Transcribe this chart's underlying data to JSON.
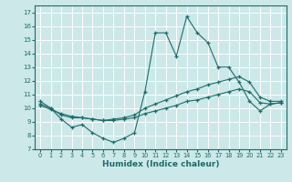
{
  "xlabel": "Humidex (Indice chaleur)",
  "xlim": [
    -0.5,
    23.5
  ],
  "ylim": [
    7,
    17.5
  ],
  "yticks": [
    7,
    8,
    9,
    10,
    11,
    12,
    13,
    14,
    15,
    16,
    17
  ],
  "xticks": [
    0,
    1,
    2,
    3,
    4,
    5,
    6,
    7,
    8,
    9,
    10,
    11,
    12,
    13,
    14,
    15,
    16,
    17,
    18,
    19,
    20,
    21,
    22,
    23
  ],
  "bg_color": "#cce8e8",
  "line_color": "#1e6b6b",
  "grid_color": "#ffffff",
  "line1_x": [
    0,
    1,
    2,
    3,
    4,
    5,
    6,
    7,
    8,
    9,
    10,
    11,
    12,
    13,
    14,
    15,
    16,
    17,
    18,
    19,
    20,
    21,
    22,
    23
  ],
  "line1_y": [
    10.5,
    10.0,
    9.2,
    8.6,
    8.8,
    8.2,
    7.8,
    7.5,
    7.8,
    8.2,
    11.2,
    15.5,
    15.5,
    13.8,
    16.7,
    15.5,
    14.8,
    13.0,
    13.0,
    11.9,
    10.5,
    9.8,
    10.3,
    10.4
  ],
  "line2_x": [
    0,
    1,
    2,
    3,
    4,
    5,
    6,
    7,
    8,
    9,
    10,
    11,
    12,
    13,
    14,
    15,
    16,
    17,
    18,
    19,
    20,
    21,
    22,
    23
  ],
  "line2_y": [
    10.3,
    10.0,
    9.5,
    9.3,
    9.3,
    9.2,
    9.1,
    9.2,
    9.3,
    9.5,
    10.0,
    10.3,
    10.6,
    10.9,
    11.2,
    11.4,
    11.7,
    11.9,
    12.1,
    12.3,
    11.9,
    10.8,
    10.5,
    10.5
  ],
  "line3_x": [
    0,
    1,
    2,
    3,
    4,
    5,
    6,
    7,
    8,
    9,
    10,
    11,
    12,
    13,
    14,
    15,
    16,
    17,
    18,
    19,
    20,
    21,
    22,
    23
  ],
  "line3_y": [
    10.2,
    9.9,
    9.6,
    9.4,
    9.3,
    9.2,
    9.1,
    9.1,
    9.2,
    9.3,
    9.6,
    9.8,
    10.0,
    10.2,
    10.5,
    10.6,
    10.8,
    11.0,
    11.2,
    11.4,
    11.2,
    10.4,
    10.3,
    10.4
  ]
}
